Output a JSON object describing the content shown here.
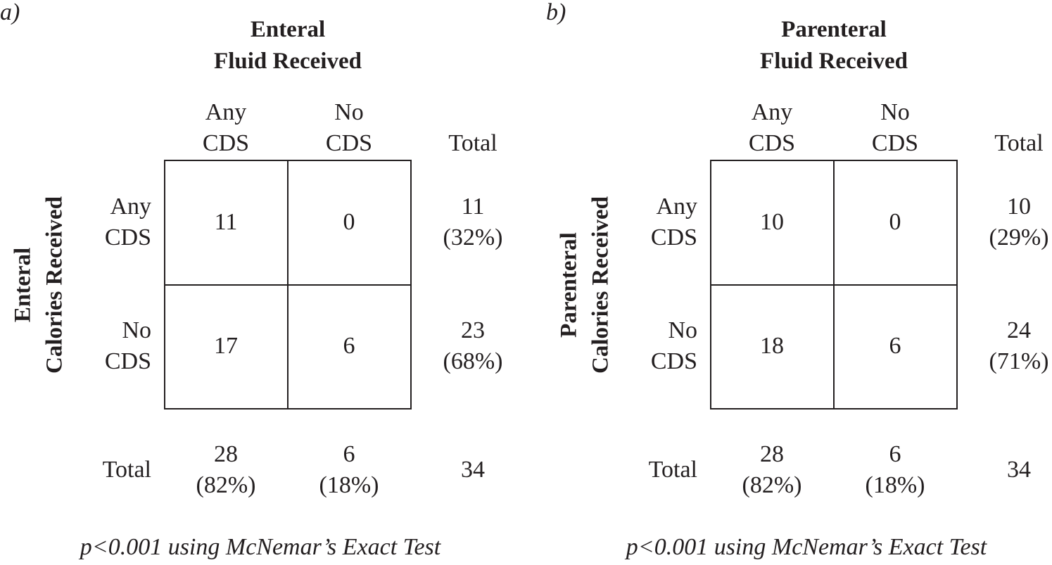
{
  "panels": [
    {
      "label": "a)",
      "col_title": [
        "Enteral",
        "Fluid Received"
      ],
      "row_title": [
        "Enteral",
        "Calories Received"
      ],
      "col_headers": [
        [
          "Any",
          "CDS"
        ],
        [
          "No",
          "CDS"
        ],
        [
          "Total"
        ]
      ],
      "row_headers": [
        [
          "Any",
          "CDS"
        ],
        [
          "No",
          "CDS"
        ],
        [
          "Total"
        ]
      ],
      "cells": [
        [
          [
            "11"
          ],
          [
            "0"
          ],
          [
            "11",
            "(32%)"
          ]
        ],
        [
          [
            "17"
          ],
          [
            "6"
          ],
          [
            "23",
            "(68%)"
          ]
        ],
        [
          [
            "28",
            "(82%)"
          ],
          [
            "6",
            "(18%)"
          ],
          [
            "34"
          ]
        ]
      ],
      "note": "p<0.001 using McNemar’s Exact Test"
    },
    {
      "label": "b)",
      "col_title": [
        "Parenteral",
        "Fluid Received"
      ],
      "row_title": [
        "Parenteral",
        "Calories Received"
      ],
      "col_headers": [
        [
          "Any",
          "CDS"
        ],
        [
          "No",
          "CDS"
        ],
        [
          "Total"
        ]
      ],
      "row_headers": [
        [
          "Any",
          "CDS"
        ],
        [
          "No",
          "CDS"
        ],
        [
          "Total"
        ]
      ],
      "cells": [
        [
          [
            "10"
          ],
          [
            "0"
          ],
          [
            "10",
            "(29%)"
          ]
        ],
        [
          [
            "18"
          ],
          [
            "6"
          ],
          [
            "24",
            "(71%)"
          ]
        ],
        [
          [
            "28",
            "(82%)"
          ],
          [
            "6",
            "(18%)"
          ],
          [
            "34"
          ]
        ]
      ],
      "note": "p<0.001 using McNemar’s Exact Test"
    }
  ]
}
